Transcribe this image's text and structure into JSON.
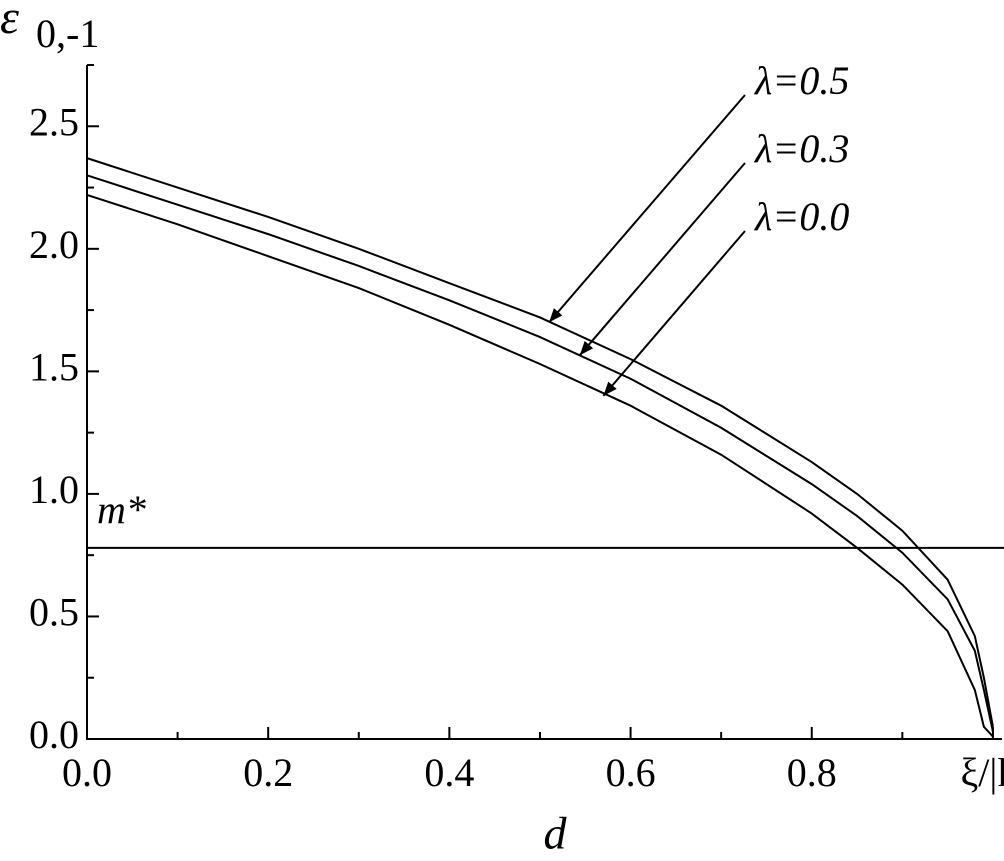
{
  "chart_data": {
    "type": "line",
    "x_label": "d",
    "y_label": "ε",
    "y_label_sub": "0,-1",
    "x": [
      0,
      0.1,
      0.2,
      0.3,
      0.4,
      0.5,
      0.6,
      0.7,
      0.8,
      0.85,
      0.9,
      0.95,
      0.98,
      0.99,
      1.0
    ],
    "series": [
      {
        "name": "λ=0.5",
        "color": "#000000",
        "values": [
          2.37,
          2.25,
          2.13,
          2.0,
          1.86,
          1.72,
          1.55,
          1.36,
          1.13,
          1.0,
          0.85,
          0.65,
          0.42,
          0.25,
          0.05
        ]
      },
      {
        "name": "λ=0.3",
        "color": "#000000",
        "values": [
          2.3,
          2.18,
          2.06,
          1.93,
          1.79,
          1.64,
          1.47,
          1.27,
          1.04,
          0.91,
          0.76,
          0.57,
          0.36,
          0.2,
          0.03
        ]
      },
      {
        "name": "λ=0.0",
        "color": "#000000",
        "values": [
          2.22,
          2.1,
          1.97,
          1.84,
          1.69,
          1.53,
          1.36,
          1.16,
          0.92,
          0.78,
          0.63,
          0.44,
          0.2,
          0.05,
          0.01
        ]
      }
    ],
    "hline": {
      "label": "m*",
      "value": 0.78
    },
    "annotations": [
      {
        "text": "λ=0.5",
        "x": 0.51,
        "y": 1.7
      },
      {
        "text": "λ=0.3",
        "x": 0.544,
        "y": 1.566
      },
      {
        "text": "λ=0.0",
        "x": 0.57,
        "y": 1.4
      }
    ],
    "xlim": [
      0,
      1.01
    ],
    "ylim": [
      0,
      2.75
    ],
    "xticks": [
      {
        "value": 0,
        "label": "0.0"
      },
      0.2,
      0.4,
      0.6,
      0.8,
      {
        "value": 1,
        "label": "ξ/|k|"
      }
    ],
    "xminorticks": [
      0.1,
      0.3,
      0.5,
      0.7,
      0.9
    ],
    "yticks": [
      {
        "value": 0,
        "label": "0.0"
      },
      0.5,
      {
        "value": 1,
        "label": "1.0"
      },
      1.5,
      {
        "value": 2,
        "label": "2.0"
      },
      2.5
    ],
    "yminorticks": [
      0.25,
      0.75,
      1.25,
      1.75,
      2.25,
      2.75
    ],
    "grid": false
  }
}
